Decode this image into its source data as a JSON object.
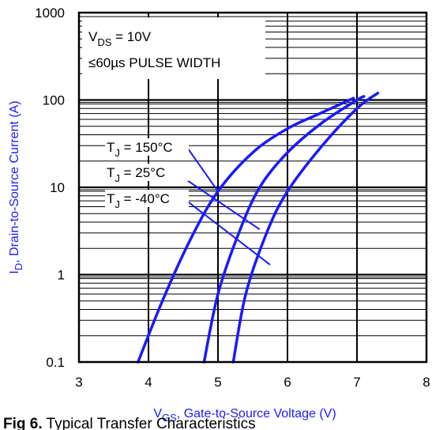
{
  "chart_data": {
    "type": "line",
    "y_scale": "log",
    "xlim": [
      3,
      8
    ],
    "ylim": [
      0.1,
      1000
    ],
    "x_ticks": [
      "3",
      "4",
      "5",
      "6",
      "7",
      "8"
    ],
    "y_ticks": [
      "0.1",
      "1",
      "10",
      "100",
      "1000"
    ],
    "xlabel": {
      "main": "V",
      "sub": "GS",
      "rest": ", Gate-to-Source Voltage (V)"
    },
    "ylabel": {
      "main": "I",
      "sub": "D",
      "rest": ", Drain-to-Source Current  (A)"
    },
    "conditions": {
      "line1": {
        "main": "V",
        "sub": "DS",
        "rest": " = 10V"
      },
      "line2": "≤60µs PULSE WIDTH"
    },
    "grid": true,
    "colors": {
      "series": "#1a1aff",
      "axis_title": "#1a1aff",
      "frame": "#000000"
    },
    "series": [
      {
        "label": {
          "main": "T",
          "sub": "J",
          "rest": " = 150°C"
        },
        "points": [
          [
            3.85,
            0.1
          ],
          [
            4.2,
            0.5
          ],
          [
            4.6,
            2.5
          ],
          [
            5.0,
            9
          ],
          [
            5.5,
            25
          ],
          [
            6.0,
            47
          ],
          [
            6.5,
            72
          ],
          [
            6.95,
            105
          ]
        ]
      },
      {
        "label": {
          "main": "T",
          "sub": "J",
          "rest": " = 25°C"
        },
        "points": [
          [
            4.8,
            0.1
          ],
          [
            5.0,
            0.6
          ],
          [
            5.3,
            3
          ],
          [
            5.6,
            10
          ],
          [
            6.0,
            25
          ],
          [
            6.5,
            55
          ],
          [
            7.0,
            100
          ],
          [
            7.1,
            110
          ]
        ]
      },
      {
        "label": {
          "main": "T",
          "sub": "J",
          "rest": " = -40°C"
        },
        "points": [
          [
            5.22,
            0.1
          ],
          [
            5.4,
            0.6
          ],
          [
            5.7,
            3
          ],
          [
            6.0,
            9
          ],
          [
            6.5,
            30
          ],
          [
            7.0,
            80
          ],
          [
            7.3,
            120
          ]
        ]
      }
    ]
  },
  "caption": {
    "bold": "Fig 6.",
    "text": "  Typical Transfer Characteristics"
  }
}
